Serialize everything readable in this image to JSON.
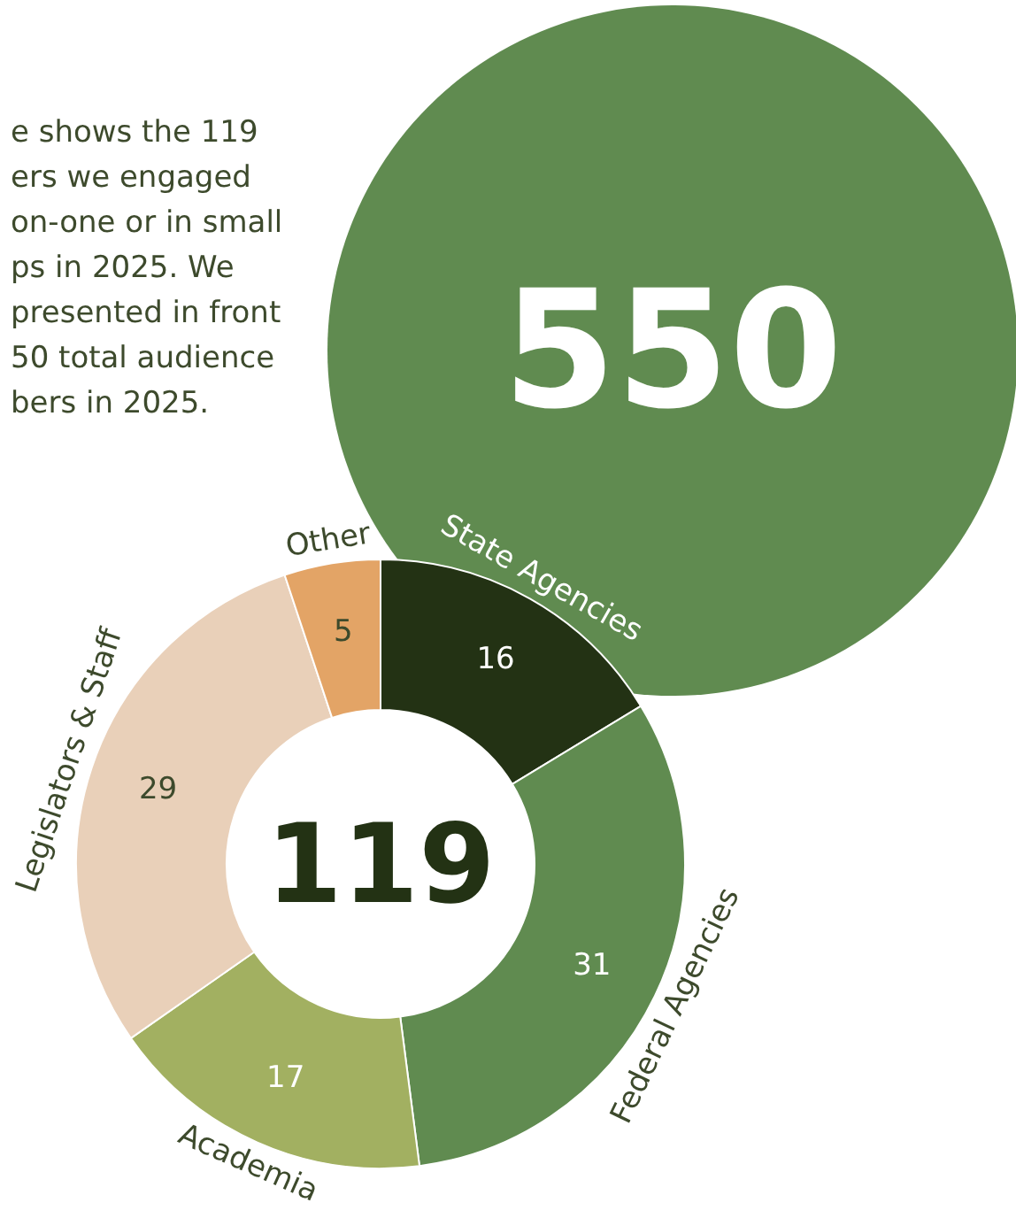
{
  "chart_data": {
    "type": "donut",
    "categories": [
      "State Agencies",
      "Federal Agencies",
      "Academia",
      "Legislators & Staff",
      "Other"
    ],
    "values": [
      16,
      31,
      17,
      29,
      5
    ],
    "colors": [
      "#233214",
      "#608b50",
      "#a2b061",
      "#e9d0b9",
      "#e3a466"
    ],
    "data_labels": true,
    "legend": false,
    "annotations": [
      "e shows the 119\ners we engaged\non-one or in small\nps in 2025. We\npresented in front\n50 total audience\nbers in 2025.",
      "119",
      "550"
    ]
  }
}
